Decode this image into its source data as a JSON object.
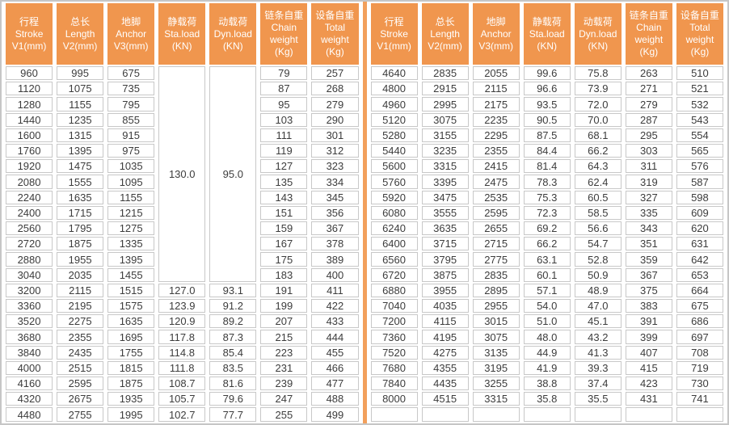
{
  "colors": {
    "header_bg": "#f0964e",
    "header_text": "#ffffff",
    "cell_border": "#c8c8c8",
    "outer_border": "#c6c6c6",
    "body_text": "#3c3c3c",
    "divider": "#f2a05c",
    "background": "#ffffff"
  },
  "table": {
    "headers": [
      {
        "name": "stroke",
        "lines": [
          "行程",
          "Stroke",
          "V1(mm)"
        ]
      },
      {
        "name": "length",
        "lines": [
          "总长",
          "Length",
          "V2(mm)"
        ]
      },
      {
        "name": "anchor",
        "lines": [
          "地脚",
          "Anchor",
          "V3(mm)"
        ]
      },
      {
        "name": "static-load",
        "lines": [
          "静载荷",
          "Sta.load",
          "(KN)"
        ]
      },
      {
        "name": "dynamic-load",
        "lines": [
          "动载荷",
          "Dyn.load",
          "(KN)"
        ]
      },
      {
        "name": "chain-weight",
        "lines": [
          "链条自重",
          "Chain",
          "weight",
          "(Kg)"
        ]
      },
      {
        "name": "total-weight",
        "lines": [
          "设备自重",
          "Total",
          "weight",
          "(Kg)"
        ]
      }
    ],
    "left_rows": [
      [
        "960",
        "995",
        "675",
        {
          "v": "130.0",
          "rowspan": 14
        },
        {
          "v": "95.0",
          "rowspan": 14
        },
        "79",
        "257"
      ],
      [
        "1120",
        "1075",
        "735",
        null,
        null,
        "87",
        "268"
      ],
      [
        "1280",
        "1155",
        "795",
        null,
        null,
        "95",
        "279"
      ],
      [
        "1440",
        "1235",
        "855",
        null,
        null,
        "103",
        "290"
      ],
      [
        "1600",
        "1315",
        "915",
        null,
        null,
        "111",
        "301"
      ],
      [
        "1760",
        "1395",
        "975",
        null,
        null,
        "119",
        "312"
      ],
      [
        "1920",
        "1475",
        "1035",
        null,
        null,
        "127",
        "323"
      ],
      [
        "2080",
        "1555",
        "1095",
        null,
        null,
        "135",
        "334"
      ],
      [
        "2240",
        "1635",
        "1155",
        null,
        null,
        "143",
        "345"
      ],
      [
        "2400",
        "1715",
        "1215",
        null,
        null,
        "151",
        "356"
      ],
      [
        "2560",
        "1795",
        "1275",
        null,
        null,
        "159",
        "367"
      ],
      [
        "2720",
        "1875",
        "1335",
        null,
        null,
        "167",
        "378"
      ],
      [
        "2880",
        "1955",
        "1395",
        null,
        null,
        "175",
        "389"
      ],
      [
        "3040",
        "2035",
        "1455",
        null,
        null,
        "183",
        "400"
      ],
      [
        "3200",
        "2115",
        "1515",
        "127.0",
        "93.1",
        "191",
        "411"
      ],
      [
        "3360",
        "2195",
        "1575",
        "123.9",
        "91.2",
        "199",
        "422"
      ],
      [
        "3520",
        "2275",
        "1635",
        "120.9",
        "89.2",
        "207",
        "433"
      ],
      [
        "3680",
        "2355",
        "1695",
        "117.8",
        "87.3",
        "215",
        "444"
      ],
      [
        "3840",
        "2435",
        "1755",
        "114.8",
        "85.4",
        "223",
        "455"
      ],
      [
        "4000",
        "2515",
        "1815",
        "111.8",
        "83.5",
        "231",
        "466"
      ],
      [
        "4160",
        "2595",
        "1875",
        "108.7",
        "81.6",
        "239",
        "477"
      ],
      [
        "4320",
        "2675",
        "1935",
        "105.7",
        "79.6",
        "247",
        "488"
      ],
      [
        "4480",
        "2755",
        "1995",
        "102.7",
        "77.7",
        "255",
        "499"
      ]
    ],
    "right_rows": [
      [
        "4640",
        "2835",
        "2055",
        "99.6",
        "75.8",
        "263",
        "510"
      ],
      [
        "4800",
        "2915",
        "2115",
        "96.6",
        "73.9",
        "271",
        "521"
      ],
      [
        "4960",
        "2995",
        "2175",
        "93.5",
        "72.0",
        "279",
        "532"
      ],
      [
        "5120",
        "3075",
        "2235",
        "90.5",
        "70.0",
        "287",
        "543"
      ],
      [
        "5280",
        "3155",
        "2295",
        "87.5",
        "68.1",
        "295",
        "554"
      ],
      [
        "5440",
        "3235",
        "2355",
        "84.4",
        "66.2",
        "303",
        "565"
      ],
      [
        "5600",
        "3315",
        "2415",
        "81.4",
        "64.3",
        "311",
        "576"
      ],
      [
        "5760",
        "3395",
        "2475",
        "78.3",
        "62.4",
        "319",
        "587"
      ],
      [
        "5920",
        "3475",
        "2535",
        "75.3",
        "60.5",
        "327",
        "598"
      ],
      [
        "6080",
        "3555",
        "2595",
        "72.3",
        "58.5",
        "335",
        "609"
      ],
      [
        "6240",
        "3635",
        "2655",
        "69.2",
        "56.6",
        "343",
        "620"
      ],
      [
        "6400",
        "3715",
        "2715",
        "66.2",
        "54.7",
        "351",
        "631"
      ],
      [
        "6560",
        "3795",
        "2775",
        "63.1",
        "52.8",
        "359",
        "642"
      ],
      [
        "6720",
        "3875",
        "2835",
        "60.1",
        "50.9",
        "367",
        "653"
      ],
      [
        "6880",
        "3955",
        "2895",
        "57.1",
        "48.9",
        "375",
        "664"
      ],
      [
        "7040",
        "4035",
        "2955",
        "54.0",
        "47.0",
        "383",
        "675"
      ],
      [
        "7200",
        "4115",
        "3015",
        "51.0",
        "45.1",
        "391",
        "686"
      ],
      [
        "7360",
        "4195",
        "3075",
        "48.0",
        "43.2",
        "399",
        "697"
      ],
      [
        "7520",
        "4275",
        "3135",
        "44.9",
        "41.3",
        "407",
        "708"
      ],
      [
        "7680",
        "4355",
        "3195",
        "41.9",
        "39.3",
        "415",
        "719"
      ],
      [
        "7840",
        "4435",
        "3255",
        "38.8",
        "37.4",
        "423",
        "730"
      ],
      [
        "8000",
        "4515",
        "3315",
        "35.8",
        "35.5",
        "431",
        "741"
      ],
      [
        "",
        "",
        "",
        "",
        "",
        "",
        ""
      ]
    ]
  }
}
